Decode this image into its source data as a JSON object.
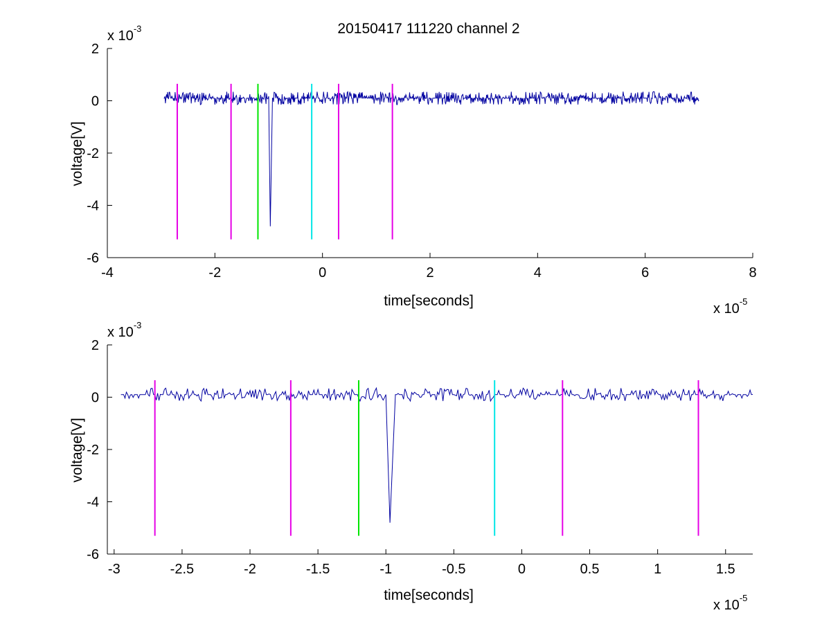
{
  "chart_data": [
    {
      "type": "line",
      "title": "20150417 111220 channel 2",
      "xlabel": "time[seconds]",
      "ylabel": "voltage[V]",
      "x_exponent_label": {
        "base": "x 10",
        "power": "-5"
      },
      "y_exponent_label": {
        "base": "x 10",
        "power": "-3"
      },
      "xlim": [
        -4,
        8
      ],
      "ylim": [
        -6,
        2
      ],
      "x_ticks": [
        "-4",
        "-2",
        "0",
        "2",
        "4",
        "6",
        "8"
      ],
      "y_ticks": [
        "-6",
        "-4",
        "-2",
        "0",
        "2"
      ],
      "grid": false,
      "series": [
        {
          "kind": "signal",
          "color": "#0000a0",
          "x_range": [
            -2.95,
            7.0
          ],
          "baseline": 0.1,
          "noise_amplitude": 0.25,
          "spike": {
            "x_start": -1.0,
            "x_min": -0.97,
            "x_end": -0.93,
            "min": -4.8
          }
        },
        {
          "kind": "marker",
          "color": "#e600e6",
          "x": -2.7,
          "y_range": [
            -5.3,
            0.65
          ]
        },
        {
          "kind": "marker",
          "color": "#e600e6",
          "x": -1.7,
          "y_range": [
            -5.3,
            0.65
          ]
        },
        {
          "kind": "marker",
          "color": "#00e600",
          "x": -1.2,
          "y_range": [
            -5.3,
            0.65
          ]
        },
        {
          "kind": "marker",
          "color": "#00e6e6",
          "x": -0.2,
          "y_range": [
            -5.3,
            0.65
          ]
        },
        {
          "kind": "marker",
          "color": "#e600e6",
          "x": 0.3,
          "y_range": [
            -5.3,
            0.65
          ]
        },
        {
          "kind": "marker",
          "color": "#e600e6",
          "x": 1.3,
          "y_range": [
            -5.3,
            0.65
          ]
        }
      ]
    },
    {
      "type": "line",
      "title": "",
      "xlabel": "time[seconds]",
      "ylabel": "voltage[V]",
      "x_exponent_label": {
        "base": "x 10",
        "power": "-5"
      },
      "y_exponent_label": {
        "base": "x 10",
        "power": "-3"
      },
      "xlim": [
        -3.05,
        1.7
      ],
      "ylim": [
        -6,
        2
      ],
      "x_ticks": [
        "-3",
        "-2.5",
        "-2",
        "-1.5",
        "-1",
        "-0.5",
        "0",
        "0.5",
        "1",
        "1.5"
      ],
      "y_ticks": [
        "-6",
        "-4",
        "-2",
        "0",
        "2"
      ],
      "grid": false,
      "series": [
        {
          "kind": "signal",
          "color": "#0000a0",
          "x_range": [
            -2.95,
            1.7
          ],
          "baseline": 0.1,
          "noise_amplitude": 0.25,
          "spike": {
            "x_start": -1.0,
            "x_min": -0.97,
            "x_end": -0.93,
            "min": -4.8
          }
        },
        {
          "kind": "marker",
          "color": "#e600e6",
          "x": -2.7,
          "y_range": [
            -5.3,
            0.65
          ]
        },
        {
          "kind": "marker",
          "color": "#e600e6",
          "x": -1.7,
          "y_range": [
            -5.3,
            0.65
          ]
        },
        {
          "kind": "marker",
          "color": "#00e600",
          "x": -1.2,
          "y_range": [
            -5.3,
            0.65
          ]
        },
        {
          "kind": "marker",
          "color": "#00e6e6",
          "x": -0.2,
          "y_range": [
            -5.3,
            0.65
          ]
        },
        {
          "kind": "marker",
          "color": "#e600e6",
          "x": 0.3,
          "y_range": [
            -5.3,
            0.65
          ]
        },
        {
          "kind": "marker",
          "color": "#e600e6",
          "x": 1.3,
          "y_range": [
            -5.3,
            0.65
          ]
        }
      ]
    }
  ]
}
